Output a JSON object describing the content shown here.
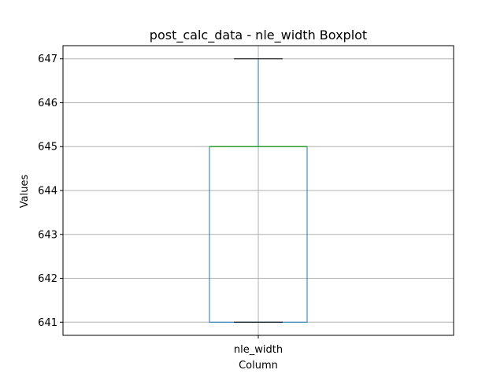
{
  "chart_data": {
    "type": "boxplot",
    "title": "post_calc_data - nle_width Boxplot",
    "xlabel": "Column",
    "ylabel": "Values",
    "categories": [
      "nle_width"
    ],
    "yticks": [
      641,
      642,
      643,
      644,
      645,
      646,
      647
    ],
    "ylim": [
      640.7,
      647.3
    ],
    "grid": true,
    "boxes": [
      {
        "category": "nle_width",
        "whisker_low": 641,
        "q1": 641,
        "median": 645,
        "q3": 645,
        "whisker_high": 647
      }
    ],
    "colors": {
      "box": "#1f77b4",
      "median": "#2ca02c",
      "whisker_cap": "#000000",
      "grid": "#b0b0b0",
      "axes": "#000000"
    }
  }
}
